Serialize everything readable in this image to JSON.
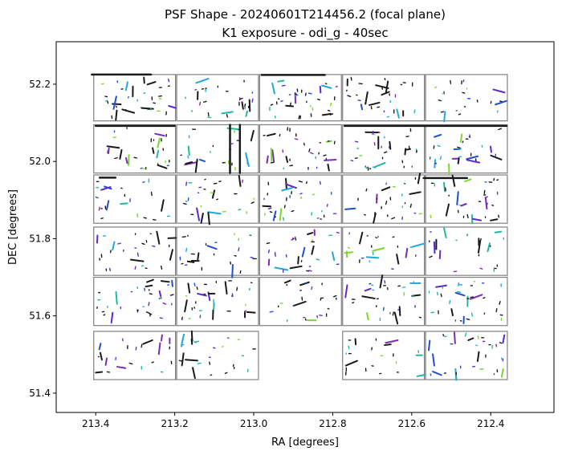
{
  "chart_data": {
    "type": "scatter",
    "title": "PSF Shape - 20240601T214456.2 (focal plane)",
    "subtitle": "K1 exposure - odi_g - 40sec",
    "xlabel": "RA [degrees]",
    "ylabel": "DEC [degrees]",
    "xlim": [
      213.5,
      212.24
    ],
    "ylim": [
      51.35,
      52.31
    ],
    "x_reversed": true,
    "xticks": [
      "213.4",
      "213.2",
      "213.0",
      "212.8",
      "212.6",
      "212.4"
    ],
    "yticks": [
      "51.4",
      "51.6",
      "51.8",
      "52.0",
      "52.2"
    ],
    "grid": false,
    "legend": "none",
    "colors": {
      "frame": "#000000",
      "ccd_border": "#808080",
      "whisker_dark": "#1a1a1a",
      "whisker_blue": "#1f4fd0",
      "whisker_cyan": "#1fa8d8",
      "whisker_teal": "#22b8a0",
      "whisker_purple": "#7a2bb8",
      "whisker_violet": "#5a2ad0",
      "whisker_green": "#7ad82a"
    },
    "ccd_rows_dec": [
      [
        52.105,
        52.225
      ],
      [
        51.97,
        52.095
      ],
      [
        51.84,
        51.965
      ],
      [
        51.705,
        51.83
      ],
      [
        51.575,
        51.7
      ],
      [
        51.435,
        51.56
      ]
    ],
    "ccd_cols_ra": [
      [
        213.405,
        213.198
      ],
      [
        213.195,
        212.988
      ],
      [
        212.985,
        212.778
      ],
      [
        212.775,
        212.568
      ],
      [
        212.565,
        212.358
      ]
    ],
    "ccd_missing": [
      [
        5,
        2
      ]
    ],
    "features": [
      {
        "name": "edge-streak",
        "x": [
          213.41,
          213.26
        ],
        "y": [
          52.225,
          52.225
        ]
      },
      {
        "name": "edge-streak",
        "x": [
          212.98,
          212.82
        ],
        "y": [
          52.224,
          52.224
        ]
      },
      {
        "name": "edge-streak",
        "x": [
          213.4,
          213.2
        ],
        "y": [
          52.092,
          52.092
        ]
      },
      {
        "name": "edge-streak",
        "x": [
          212.77,
          212.36
        ],
        "y": [
          52.092,
          52.092
        ]
      },
      {
        "name": "vertical-streak",
        "x": [
          213.06,
          213.06
        ],
        "y": [
          51.97,
          52.095
        ]
      },
      {
        "name": "vertical-streak",
        "x": [
          213.035,
          213.035
        ],
        "y": [
          51.97,
          52.095
        ]
      },
      {
        "name": "edge-streak",
        "x": [
          212.57,
          212.46
        ],
        "y": [
          51.957,
          51.957
        ]
      },
      {
        "name": "edge-streak",
        "x": [
          213.39,
          213.35
        ],
        "y": [
          51.958,
          51.958
        ]
      }
    ]
  }
}
